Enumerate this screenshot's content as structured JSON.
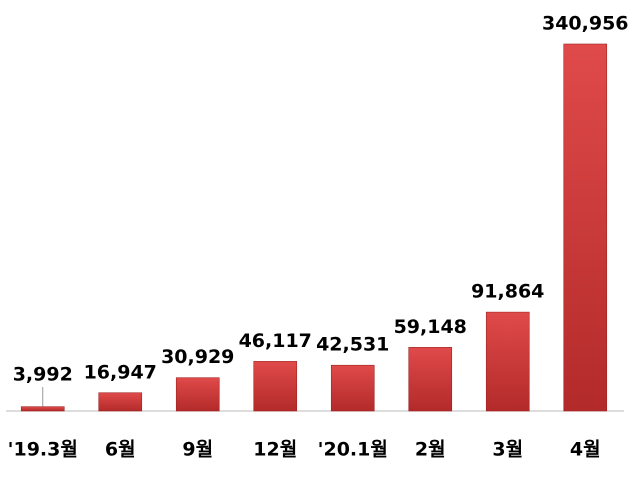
{
  "chart_data": {
    "type": "bar",
    "categories": [
      "'19.3월",
      "6월",
      "9월",
      "12월",
      "'20.1월",
      "2월",
      "3월",
      "4월"
    ],
    "values": [
      3992,
      16947,
      30929,
      46117,
      42531,
      59148,
      91864,
      340956
    ],
    "value_labels": [
      "3,992",
      "16,947",
      "30,929",
      "46,117",
      "42,531",
      "59,148",
      "91,864",
      "340,956"
    ],
    "color": "#d43c3c"
  }
}
